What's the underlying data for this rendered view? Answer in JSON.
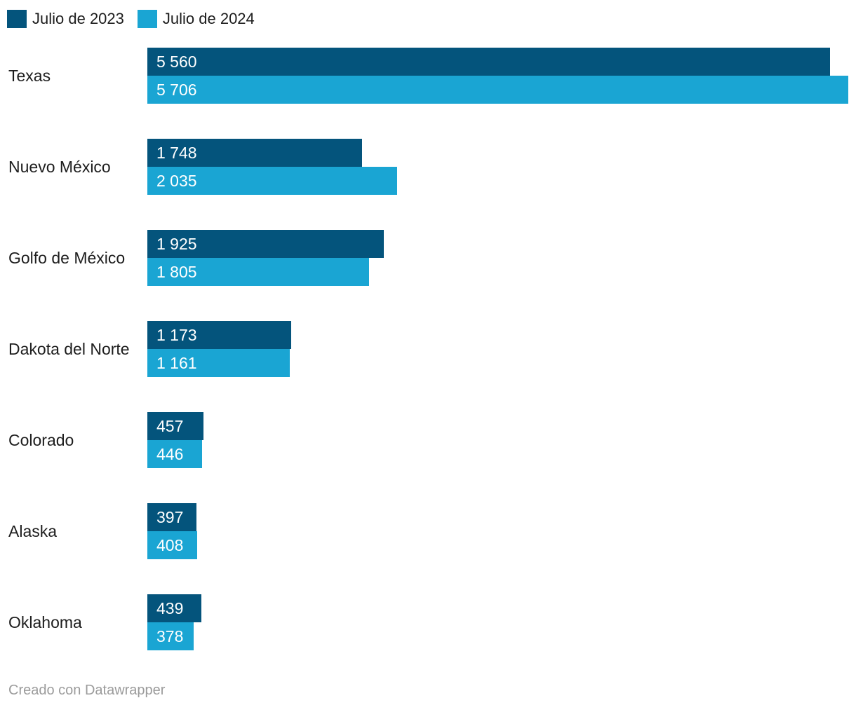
{
  "chart_data": {
    "type": "bar",
    "orientation": "horizontal",
    "grid": false,
    "legend_position": "top",
    "axis_max": 5706,
    "legend": [
      {
        "label": "Julio de 2023",
        "color": "#04547c"
      },
      {
        "label": "Julio de 2024",
        "color": "#1aa5d3"
      }
    ],
    "categories": [
      "Texas",
      "Nuevo México",
      "Golfo de México",
      "Dakota del Norte",
      "Colorado",
      "Alaska",
      "Oklahoma"
    ],
    "series": [
      {
        "name": "Julio de 2023",
        "values": [
          5560,
          1748,
          1925,
          1173,
          457,
          397,
          439
        ]
      },
      {
        "name": "Julio de 2024",
        "values": [
          5706,
          2035,
          1805,
          1161,
          446,
          408,
          378
        ]
      }
    ],
    "rows": [
      {
        "label": "Texas",
        "values": [
          5560,
          5706
        ],
        "value_labels": [
          "5 560",
          "5 706"
        ]
      },
      {
        "label": "Nuevo México",
        "values": [
          1748,
          2035
        ],
        "value_labels": [
          "1 748",
          "2 035"
        ]
      },
      {
        "label": "Golfo de México",
        "values": [
          1925,
          1805
        ],
        "value_labels": [
          "1 925",
          "1 805"
        ]
      },
      {
        "label": "Dakota del Norte",
        "values": [
          1173,
          1161
        ],
        "value_labels": [
          "1 173",
          "1 161"
        ]
      },
      {
        "label": "Colorado",
        "values": [
          457,
          446
        ],
        "value_labels": [
          "457",
          "446"
        ]
      },
      {
        "label": "Alaska",
        "values": [
          397,
          408
        ],
        "value_labels": [
          "397",
          "408"
        ]
      },
      {
        "label": "Oklahoma",
        "values": [
          439,
          378
        ],
        "value_labels": [
          "439",
          "378"
        ]
      }
    ]
  },
  "colors": {
    "series_2023": "#04547c",
    "series_2024": "#1aa5d3",
    "value_text": "#ffffff",
    "label_text": "#1d1d1d",
    "footer_text": "#9b9b9b",
    "background": "#ffffff"
  },
  "footer": {
    "credit": "Creado con Datawrapper"
  }
}
